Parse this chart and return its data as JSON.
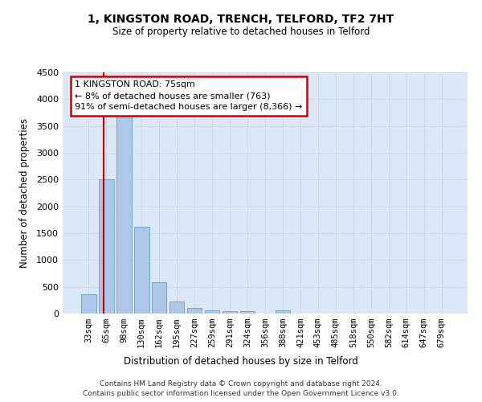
{
  "title": "1, KINGSTON ROAD, TRENCH, TELFORD, TF2 7HT",
  "subtitle": "Size of property relative to detached houses in Telford",
  "xlabel": "Distribution of detached houses by size in Telford",
  "ylabel": "Number of detached properties",
  "categories": [
    "33sqm",
    "65sqm",
    "98sqm",
    "130sqm",
    "162sqm",
    "195sqm",
    "227sqm",
    "259sqm",
    "291sqm",
    "324sqm",
    "356sqm",
    "388sqm",
    "421sqm",
    "453sqm",
    "485sqm",
    "518sqm",
    "550sqm",
    "582sqm",
    "614sqm",
    "647sqm",
    "679sqm"
  ],
  "values": [
    360,
    2500,
    3720,
    1620,
    590,
    230,
    105,
    65,
    45,
    40,
    0,
    65,
    0,
    0,
    0,
    0,
    0,
    0,
    0,
    0,
    0
  ],
  "bar_color": "#aec6e8",
  "bar_edge_color": "#6aaad4",
  "ylim": [
    0,
    4500
  ],
  "yticks": [
    0,
    500,
    1000,
    1500,
    2000,
    2500,
    3000,
    3500,
    4000,
    4500
  ],
  "annotation_title": "1 KINGSTON ROAD: 75sqm",
  "annotation_line1": "← 8% of detached houses are smaller (763)",
  "annotation_line2": "91% of semi-detached houses are larger (8,366) →",
  "annotation_box_color": "#ffffff",
  "annotation_border_color": "#cc0000",
  "red_line_color": "#cc0000",
  "grid_color": "#d0d8e8",
  "background_color": "#dce8f5",
  "footer_line1": "Contains HM Land Registry data © Crown copyright and database right 2024.",
  "footer_line2": "Contains public sector information licensed under the Open Government Licence v3.0."
}
